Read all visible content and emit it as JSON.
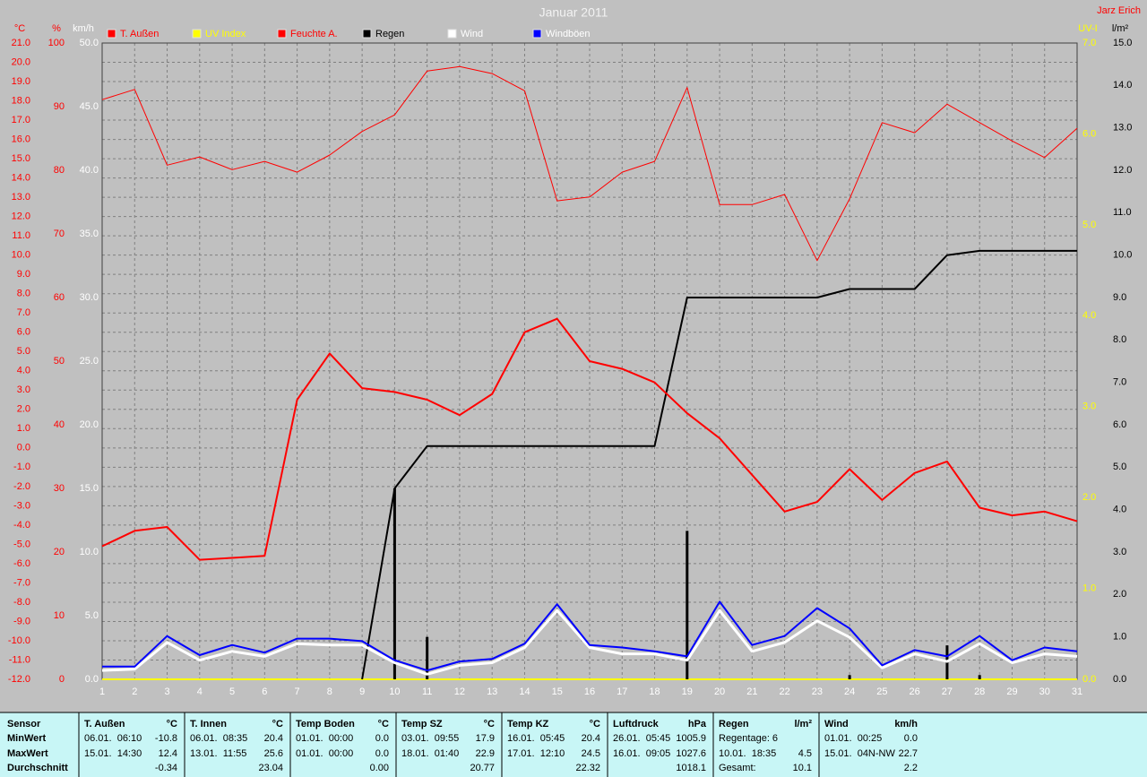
{
  "chart_data": {
    "type": "line",
    "title": "Januar 2011",
    "author": "Jarz Erich",
    "grid": true,
    "x": [
      1,
      2,
      3,
      4,
      5,
      6,
      7,
      8,
      9,
      10,
      11,
      12,
      13,
      14,
      15,
      16,
      17,
      18,
      19,
      20,
      21,
      22,
      23,
      24,
      25,
      26,
      27,
      28,
      29,
      30,
      31
    ],
    "xlim": [
      1,
      31
    ],
    "axes": [
      {
        "label": "°C",
        "color": "#ff0000",
        "lim": [
          -12,
          21
        ],
        "ticks": [
          {
            "value": 21,
            "label": "21.0"
          },
          {
            "value": 20,
            "label": "20.0"
          },
          {
            "value": 19,
            "label": "19.0"
          },
          {
            "value": 18,
            "label": "18.0"
          },
          {
            "value": 17,
            "label": "17.0"
          },
          {
            "value": 16,
            "label": "16.0"
          },
          {
            "value": 15,
            "label": "15.0"
          },
          {
            "value": 14,
            "label": "14.0"
          },
          {
            "value": 13,
            "label": "13.0"
          },
          {
            "value": 12,
            "label": "12.0"
          },
          {
            "value": 11,
            "label": "11.0"
          },
          {
            "value": 10,
            "label": "10.0"
          },
          {
            "value": 9,
            "label": "9.0"
          },
          {
            "value": 8,
            "label": "8.0"
          },
          {
            "value": 7,
            "label": "7.0"
          },
          {
            "value": 6,
            "label": "6.0"
          },
          {
            "value": 5,
            "label": "5.0"
          },
          {
            "value": 4,
            "label": "4.0"
          },
          {
            "value": 3,
            "label": "3.0"
          },
          {
            "value": 2,
            "label": "2.0"
          },
          {
            "value": 1,
            "label": "1.0"
          },
          {
            "value": 0,
            "label": "0.0"
          },
          {
            "value": -1,
            "label": "-1.0"
          },
          {
            "value": -2,
            "label": "-2.0"
          },
          {
            "value": -3,
            "label": "-3.0"
          },
          {
            "value": -4,
            "label": "-4.0"
          },
          {
            "value": -5,
            "label": "-5.0"
          },
          {
            "value": -6,
            "label": "-6.0"
          },
          {
            "value": -7,
            "label": "-7.0"
          },
          {
            "value": -8,
            "label": "-8.0"
          },
          {
            "value": -9,
            "label": "-9.0"
          },
          {
            "value": -10,
            "label": "-10.0"
          },
          {
            "value": -11,
            "label": "-11.0"
          },
          {
            "value": -12,
            "label": "-12.0"
          }
        ]
      },
      {
        "label": "%",
        "color": "#ff0000",
        "lim": [
          0,
          100
        ],
        "ticks": [
          100,
          90,
          80,
          70,
          60,
          50,
          40,
          30,
          20,
          10,
          0
        ]
      },
      {
        "label": "km/h",
        "color": "#ffffff",
        "lim": [
          0,
          50
        ],
        "ticks": [
          {
            "value": 50,
            "label": "50.0"
          },
          {
            "value": 45,
            "label": "45.0"
          },
          {
            "value": 40,
            "label": "40.0"
          },
          {
            "value": 35,
            "label": "35.0"
          },
          {
            "value": 30,
            "label": "30.0"
          },
          {
            "value": 25,
            "label": "25.0"
          },
          {
            "value": 20,
            "label": "20.0"
          },
          {
            "value": 15,
            "label": "15.0"
          },
          {
            "value": 10,
            "label": "10.0"
          },
          {
            "value": 5,
            "label": "5.0"
          },
          {
            "value": 0,
            "label": "0.0"
          }
        ]
      },
      {
        "label": "UV-I",
        "color": "#ffff00",
        "lim": [
          0,
          7
        ],
        "ticks": [
          {
            "value": 7,
            "label": "7.0"
          },
          {
            "value": 6,
            "label": "6.0"
          },
          {
            "value": 5,
            "label": "5.0"
          },
          {
            "value": 4,
            "label": "4.0"
          },
          {
            "value": 3,
            "label": "3.0"
          },
          {
            "value": 2,
            "label": "2.0"
          },
          {
            "value": 1,
            "label": "1.0"
          },
          {
            "value": 0,
            "label": "0.0"
          }
        ]
      },
      {
        "label": "l/m²",
        "color": "#000000",
        "lim": [
          0,
          15
        ],
        "ticks": [
          {
            "value": 15,
            "label": "15.0"
          },
          {
            "value": 14,
            "label": "14.0"
          },
          {
            "value": 13,
            "label": "13.0"
          },
          {
            "value": 12,
            "label": "12.0"
          },
          {
            "value": 11,
            "label": "11.0"
          },
          {
            "value": 10,
            "label": "10.0"
          },
          {
            "value": 9,
            "label": "9.0"
          },
          {
            "value": 8,
            "label": "8.0"
          },
          {
            "value": 7,
            "label": "7.0"
          },
          {
            "value": 6,
            "label": "6.0"
          },
          {
            "value": 5,
            "label": "5.0"
          },
          {
            "value": 4,
            "label": "4.0"
          },
          {
            "value": 3,
            "label": "3.0"
          },
          {
            "value": 2,
            "label": "2.0"
          },
          {
            "value": 1,
            "label": "1.0"
          },
          {
            "value": 0,
            "label": "0.0"
          }
        ]
      }
    ],
    "series": [
      {
        "name": "T. Außen",
        "color": "#ff0000",
        "label_color": "#ff0000",
        "axis": 0,
        "line_width": 2,
        "values": [
          -5.1,
          -4.3,
          -4.1,
          -5.8,
          -5.7,
          -5.6,
          2.5,
          4.9,
          3.1,
          2.9,
          2.5,
          1.7,
          2.8,
          6.0,
          6.7,
          4.5,
          4.1,
          3.4,
          1.8,
          0.5,
          -1.4,
          -3.3,
          -2.8,
          -1.1,
          -2.7,
          -1.3,
          -0.7,
          -3.1,
          -3.5,
          -3.3,
          -3.8
        ]
      },
      {
        "name": "UV Index",
        "color": "#ffff00",
        "label_color": "#ffff00",
        "axis": 3,
        "line_width": 2,
        "values": [
          0,
          0,
          0,
          0,
          0,
          0,
          0,
          0,
          0,
          0,
          0,
          0,
          0,
          0,
          0,
          0,
          0,
          0,
          0,
          0,
          0,
          0,
          0,
          0,
          0,
          0,
          0,
          0,
          0,
          0,
          0
        ]
      },
      {
        "name": "Feuchte A.",
        "color": "#ff0000",
        "label_color": "#ff0000",
        "axis": 1,
        "line_width": 1,
        "values": [
          91.1,
          92.7,
          80.8,
          82.1,
          80.1,
          81.4,
          79.7,
          82.4,
          86.1,
          88.7,
          95.6,
          96.3,
          95.2,
          92.5,
          75.2,
          75.8,
          79.7,
          81.4,
          93.0,
          74.6,
          74.6,
          76.2,
          65.8,
          75.5,
          87.5,
          85.9,
          90.4,
          87.5,
          84.6,
          82.0,
          86.6
        ]
      },
      {
        "name": "Regen",
        "color": "#000000",
        "label_color": "#000000",
        "axis": 4,
        "line_width": 2,
        "values": [
          null,
          null,
          null,
          null,
          null,
          null,
          null,
          null,
          0,
          4.5,
          5.5,
          5.5,
          5.5,
          5.5,
          5.5,
          5.5,
          5.5,
          5.5,
          9.0,
          9.0,
          9.0,
          9.0,
          9.0,
          9.2,
          9.2,
          9.2,
          10.0,
          10.1,
          10.1,
          10.1,
          10.1
        ],
        "daily": [
          0,
          0,
          0,
          0,
          0,
          0,
          0,
          0,
          0,
          4.5,
          1.0,
          0,
          0,
          0,
          0,
          0,
          0,
          0,
          3.5,
          0,
          0,
          0,
          0,
          0.1,
          0,
          0,
          0.8,
          0.1,
          0,
          0,
          0
        ]
      },
      {
        "name": "Wind",
        "color": "#ffffff",
        "label_color": "#ffffff",
        "axis": 2,
        "line_width": 3,
        "values": [
          0.7,
          0.8,
          2.9,
          1.5,
          2.2,
          1.8,
          2.8,
          2.7,
          2.7,
          1.3,
          0.4,
          1.1,
          1.3,
          2.5,
          5.4,
          2.5,
          2.0,
          2.0,
          1.5,
          5.4,
          2.2,
          2.9,
          4.6,
          3.3,
          0.9,
          2.0,
          1.4,
          2.8,
          1.3,
          2.0,
          1.8
        ]
      },
      {
        "name": "Windböen",
        "color": "#0000ff",
        "label_color": "#ffffff",
        "axis": 2,
        "line_width": 2,
        "values": [
          1.0,
          1.0,
          3.4,
          1.9,
          2.7,
          2.1,
          3.2,
          3.2,
          3.0,
          1.5,
          0.7,
          1.4,
          1.6,
          2.8,
          5.9,
          2.7,
          2.5,
          2.2,
          1.8,
          6.1,
          2.7,
          3.4,
          5.6,
          4.0,
          1.1,
          2.3,
          1.8,
          3.4,
          1.5,
          2.5,
          2.2
        ]
      }
    ]
  },
  "table": {
    "row_labels": [
      "Sensor",
      "MinWert",
      "MaxWert",
      "Durchschnitt"
    ],
    "columns": [
      {
        "header": "T. Außen",
        "unit": "°C",
        "min": {
          "text": "06.01.  06:10",
          "value": "-10.8"
        },
        "max": {
          "text": "15.01.  14:30",
          "value": "12.4"
        },
        "avg": {
          "value": "-0.34"
        }
      },
      {
        "header": "T. Innen",
        "unit": "°C",
        "min": {
          "text": "06.01.  08:35",
          "value": "20.4"
        },
        "max": {
          "text": "13.01.  11:55",
          "value": "25.6"
        },
        "avg": {
          "value": "23.04"
        }
      },
      {
        "header": "Temp Boden",
        "unit": "°C",
        "min": {
          "text": "01.01.  00:00",
          "value": "0.0"
        },
        "max": {
          "text": "01.01.  00:00",
          "value": "0.0"
        },
        "avg": {
          "value": "0.00"
        }
      },
      {
        "header": "Temp SZ",
        "unit": "°C",
        "min": {
          "text": "03.01.  09:55",
          "value": "17.9"
        },
        "max": {
          "text": "18.01.  01:40",
          "value": "22.9"
        },
        "avg": {
          "value": "20.77"
        }
      },
      {
        "header": "Temp KZ",
        "unit": "°C",
        "min": {
          "text": "16.01.  05:45",
          "value": "20.4"
        },
        "max": {
          "text": "17.01.  12:10",
          "value": "24.5"
        },
        "avg": {
          "value": "22.32"
        }
      },
      {
        "header": "Luftdruck",
        "unit": "hPa",
        "min": {
          "text": "26.01.  05:45",
          "value": "1005.9"
        },
        "max": {
          "text": "16.01.  09:05",
          "value": "1027.6"
        },
        "avg": {
          "value": "1018.1"
        }
      },
      {
        "header": "Regen",
        "unit": "l/m²",
        "min": {
          "text": "Regentage: 6"
        },
        "max": {
          "text": "10.01.  18:35",
          "value": "4.5"
        },
        "avg": {
          "text": "Gesamt:",
          "value": "10.1"
        }
      },
      {
        "header": "Wind",
        "unit": "km/h",
        "min": {
          "text": "01.01.  00:25",
          "value": "0.0"
        },
        "max": {
          "text": "15.01.  04N-NW",
          "value": "22.7"
        },
        "avg": {
          "value": "2.2"
        }
      }
    ]
  }
}
